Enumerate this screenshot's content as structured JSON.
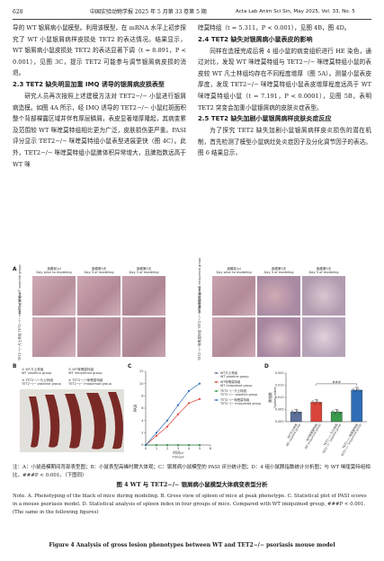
{
  "header": {
    "page_number": "628",
    "journal_cn": "中国实验动物学报 2025 年 5 月第 33 卷第 5 期",
    "journal_en": "Acta Lab Anim Sci Sin, May 2025, Vol. 33, No. 5"
  },
  "left_col": {
    "p1": "导的 WT 银屑病小鼠模型。利用该模型，在 mRNA 水平上初步探究了 WT 小鼠银屑病样皮损处 TET2 的表达情况。结果显示，WT 银屑病小鼠皮损处 TET2 的表达显著下调（t = 8.891，P < 0.001），见图 3C，提示 TET2 可能参与调节银屑病皮损的消退。",
    "sec_2_3": "2.3  TET2 缺失明显加重 IMQ 诱导的银屑病皮损表型",
    "p2": "研究人员再次按照上述建模方法对 TET2−/− 小鼠进行银屑病造模。如图 4A 所示，经 IMQ 诱导的 TET2−/− 小鼠红斑面积整个背部裸露区域并伴有厚层鳞屑，表皮显著增厚隆起，其病变累及范围较 WT 咪喹莫特组相比更为广泛，皮肤损伤更严重。PASI 评分显示 TET2−/− 咪喹莫特组小鼠表型进展更快（图 4C）。此外，TET2−/− 咪喹莫特组小鼠脾体积异常增大，且脾指数远高于 WT 咪"
  },
  "right_col": {
    "p1": "喹莫特组（t = 5.311，P < 0.001），见图 4B，图 4D。",
    "sec_2_4": "2.4  TET2 缺失对银屑病小鼠表皮的影响",
    "p2": "同样在造模完成后将 4 组小鼠的病变组织进行 HE 染色，通过对比，发现 WT 咪喹莫特组与 TET2−/− 咪喹莫特组小鼠的表皮较 WT 凡士林组均存在不同程度增厚（图 5A）。测量小鼠表皮厚度，发现 TET2−/− 咪喹莫特组小鼠表皮增厚程度远高于 WT 咪喹莫特组小鼠（t = 7.191，P < 0.0001），见图 5B，表明 TET2 突变会加重小鼠银屑病的皮肤炎症表型。",
    "sec_2_5": "2.5  TET2 缺失加剧小鼠银屑病样皮肤炎症反应",
    "p3": "为了探究 TET2 缺失加剧小鼠银屑病样皮炎损伤的潜在机制，首先检测了模型小鼠病灶处炎症因子及分化调节因子的表达。图 6 结果显示，"
  },
  "figure": {
    "panel_a": "A",
    "panel_b": "B",
    "panel_c": "C",
    "panel_d": "D",
    "time_headers": [
      {
        "cn": "造模前1d",
        "en": "Day prior to modeling"
      },
      {
        "cn": "造模第3天",
        "en": "Day 3 of modeling"
      },
      {
        "cn": "造模第5天",
        "en": "Day 5 of modeling"
      }
    ],
    "row_labels_a_left": [
      "WT凡士林组",
      "TET2−/−凡士林组"
    ],
    "row_labels_a_left_en": [
      "WT vaseline group",
      "TET2−/− vaseline group"
    ],
    "row_labels_a_right": [
      "WT咪喹莫特组",
      "TET2−/−咪喹莫特组"
    ],
    "row_labels_a_right_en": [
      "WT imiquimod group",
      "TET2−/− imiquimod group"
    ],
    "legend_b": [
      {
        "cn": "① WT凡士林组",
        "en": "WT vaseline group"
      },
      {
        "cn": "② WT咪喹莫特组",
        "en": "WT imiquimod group"
      },
      {
        "cn": "③ TET2−/−凡士林组",
        "en": "TET2−/− vaseline group"
      },
      {
        "cn": "④ TET2−/−咪喹莫特组",
        "en": "TET2−/− imiquimod group"
      }
    ],
    "legend_c": [
      {
        "cn": "WT凡士林组",
        "en": "WT vaseline group"
      },
      {
        "cn": "WT咪喹莫特组",
        "en": "WT imiquimod group"
      },
      {
        "cn": "TET2−/−凡士林组",
        "en": "TET2−/− vaseline group"
      },
      {
        "cn": "TET2−/−咪喹莫特组",
        "en": "TET2−/− imiquimod group"
      }
    ],
    "chart_c_ylabel": "PASI",
    "chart_c_xlabel_cn": "时间/d",
    "chart_c_xlabel_en": "Time/d",
    "chart_d_ylabel_cn": "脾指数",
    "chart_d_ylabel_en": "Spleen index",
    "chart_d_sig": "###",
    "chart_d_xcats_cn": [
      "WT凡士林组",
      "WT咪喹莫特组",
      "TET2−/−凡士林组",
      "TET2−/−咪喹莫特组"
    ],
    "chart_d_xcats_en": [
      "WT vaseline group",
      "WT imiquimod group",
      "TET2−/− vaseline group",
      "TET2−/− imiquimod group"
    ]
  },
  "colors": {
    "wt_vaseline": "#5a6f9a",
    "wt_imiquimod": "#d9443a",
    "tet2_vaseline": "#3b9a4b",
    "tet2_imiquimod": "#2f6eb5",
    "skin_pink": "#c9a2ad",
    "skin_purple": "#a98aa6",
    "spleen": "#7a2a26"
  },
  "chart_data": [
    {
      "type": "line",
      "panel": "C",
      "x": [
        0,
        1,
        2,
        3,
        4,
        5,
        6
      ],
      "xlim": [
        0,
        6
      ],
      "ylim": [
        0,
        12
      ],
      "yticks": [
        0,
        2,
        4,
        6,
        8,
        10,
        12
      ],
      "xticks": [
        0,
        1,
        2,
        3,
        4,
        5,
        6
      ],
      "series": [
        {
          "name": "WT凡士林组 WT vaseline group",
          "x": [
            0,
            1,
            2,
            3,
            4,
            5
          ],
          "values": [
            0,
            0,
            0,
            0,
            0,
            0
          ]
        },
        {
          "name": "WT咪喹莫特组 WT imiquimod group",
          "x": [
            0,
            1,
            2,
            3,
            4,
            5
          ],
          "values": [
            0,
            1.5,
            3.0,
            5.0,
            6.8,
            7.5
          ]
        },
        {
          "name": "TET2−/−凡士林组 TET2−/− vaseline group",
          "x": [
            0,
            1,
            2,
            3,
            4,
            5
          ],
          "values": [
            0,
            0,
            0,
            0,
            0,
            0
          ]
        },
        {
          "name": "TET2−/−咪喹莫特组 TET2−/− imiquimod group",
          "x": [
            0,
            1,
            2,
            3,
            4,
            5
          ],
          "values": [
            0,
            2.0,
            4.0,
            6.5,
            8.8,
            10.0
          ]
        }
      ]
    },
    {
      "type": "bar",
      "panel": "D",
      "categories": [
        "WT vaseline group",
        "WT imiquimod group",
        "TET2−/− vaseline group",
        "TET2−/− imiquimod group"
      ],
      "values": [
        0.004,
        0.008,
        0.004,
        0.013
      ],
      "ylim": [
        0,
        0.02
      ],
      "yticks": [
        0,
        0.005,
        0.01,
        0.015,
        0.02
      ],
      "significance": "###"
    }
  ],
  "caption": {
    "note_cn": "注：A：小鼠造模期间背部表型图；B：小鼠表型高峰时脾大体观；C：银屑病小鼠模型的 PASI 评分统计图；D：4 组小鼠脾指数统计分析图；与 WT 咪喹莫特组相比，###P < 0.001。（下图同）",
    "title_cn": "图 4   WT 与 TET2−/− 银屑病小鼠模型大体病变表型分析",
    "note_en": "Note. A. Phenotyping of the black of mice during modeling. B. Gross view of spleen of mice at peak phenotype. C. Statistical plot of PASI scores in a mouse psoriasis model. D. Statistical analysis of spleen index in four groups of mice. Compared with WT imiquimod group, ###P < 0.001. (The same in the following figures)",
    "title_en": "Figure 4   Analysis of gross lesion phenotypes between WT and TET2−/− psoriasis mouse model"
  }
}
